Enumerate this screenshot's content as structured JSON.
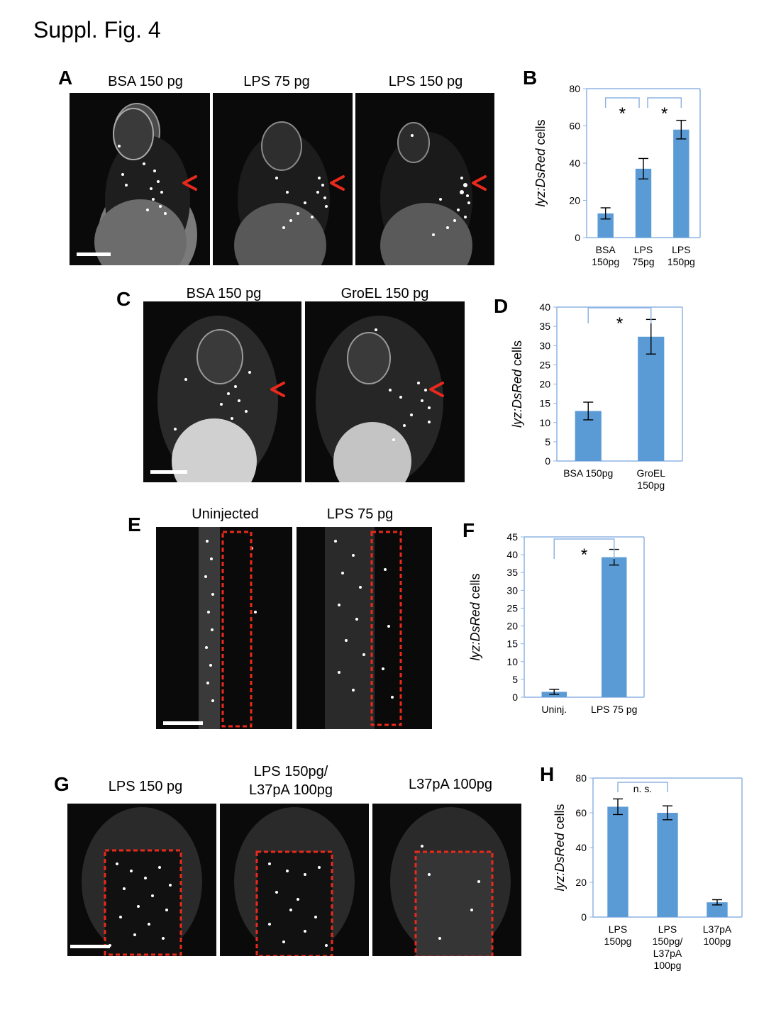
{
  "figure_title": "Suppl. Fig. 4",
  "panels": {
    "A": {
      "label": "A",
      "titles": [
        "BSA  150 pg",
        "LPS 75 pg",
        "LPS  150 pg"
      ]
    },
    "B": {
      "label": "B"
    },
    "C": {
      "label": "C",
      "titles": [
        "BSA 150 pg",
        "GroEL 150 pg"
      ]
    },
    "D": {
      "label": "D"
    },
    "E": {
      "label": "E",
      "titles": [
        "Uninjected",
        "LPS 75 pg"
      ]
    },
    "F": {
      "label": "F"
    },
    "G": {
      "label": "G",
      "titles": [
        "LPS 150 pg",
        "LPS 150pg/\nL37pA 100pg",
        "L37pA 100pg"
      ]
    },
    "H": {
      "label": "H"
    }
  },
  "colors": {
    "bar": "#5b9bd5",
    "axis": "#8eb4e3",
    "arrow": "#e8291c",
    "box": "#e8291c"
  },
  "chart_data": [
    {
      "panel": "B",
      "type": "bar",
      "categories": [
        "BSA\n150pg",
        "LPS\n75pg",
        "LPS\n150pg"
      ],
      "values": [
        13,
        37,
        58
      ],
      "errors": [
        3,
        5.5,
        5
      ],
      "ylabel_pre": "lyz:DsRed",
      " ylabel_post": " cells",
      "ylabel_post": " cells",
      "ylim": [
        0,
        80
      ],
      "yticks": [
        0,
        20,
        40,
        60,
        80
      ],
      "sig": [
        {
          "from": 0,
          "to": 1,
          "text": "*"
        },
        {
          "from": 1,
          "to": 2,
          "text": "*"
        }
      ]
    },
    {
      "panel": "D",
      "type": "bar",
      "categories": [
        "BSA 150pg",
        "GroEL\n150pg"
      ],
      "values": [
        13,
        32.3
      ],
      "errors": [
        2.3,
        4.5
      ],
      "ylabel_pre": "lyz:DsRed",
      "ylabel_post": " cells",
      "ylim": [
        0,
        40
      ],
      "yticks": [
        0,
        5,
        10,
        15,
        20,
        25,
        30,
        35,
        40
      ],
      "sig": [
        {
          "from": 0,
          "to": 1,
          "text": "*"
        }
      ]
    },
    {
      "panel": "F",
      "type": "bar",
      "categories": [
        "Uninj.",
        "LPS 75 pg"
      ],
      "values": [
        1.5,
        39.3
      ],
      "errors": [
        0.7,
        2.2
      ],
      "ylabel_pre": "lyz:DsRed",
      "ylabel_post": " cells",
      "ylim": [
        0,
        45
      ],
      "yticks": [
        0,
        5,
        10,
        15,
        20,
        25,
        30,
        35,
        40,
        45
      ],
      "sig": [
        {
          "from": 0,
          "to": 1,
          "text": "*"
        }
      ]
    },
    {
      "panel": "H",
      "type": "bar",
      "categories": [
        "LPS\n150pg",
        "LPS\n150pg/\nL37pA\n100pg",
        "L37pA\n100pg"
      ],
      "values": [
        63.5,
        60,
        8.5
      ],
      "errors": [
        4.5,
        4,
        1.5
      ],
      "ylabel_pre": "lyz:DsRed",
      "ylabel_post": " cells",
      "ylim": [
        0,
        80
      ],
      "yticks": [
        0,
        20,
        40,
        60,
        80
      ],
      "sig": [
        {
          "from": 0,
          "to": 1,
          "text": "n. s."
        }
      ]
    }
  ]
}
